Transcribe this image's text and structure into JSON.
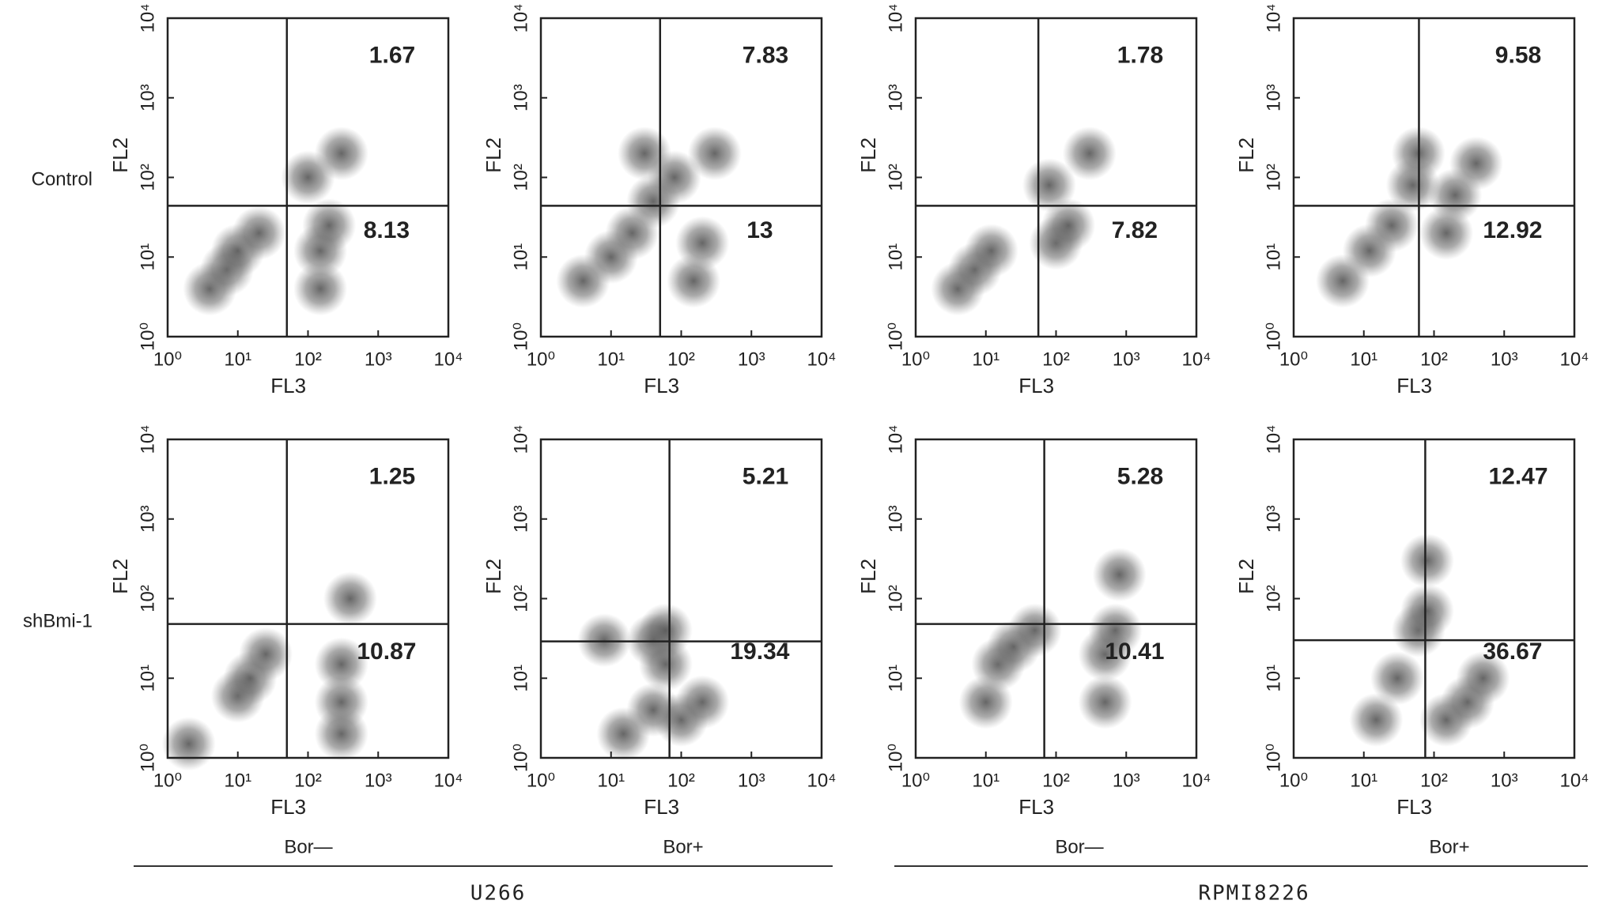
{
  "row_labels": [
    "Control",
    "shBmi-1"
  ],
  "column_labels": [
    "Bor—",
    "Bor+",
    "Bor—",
    "Bor+"
  ],
  "groups": [
    "U266",
    "RPMI8226"
  ],
  "chart_data": [
    {
      "type": "scatter",
      "xlabel": "FL3",
      "ylabel": "FL2",
      "log": true,
      "xlim": [
        1,
        10000
      ],
      "ylim": [
        1,
        10000
      ],
      "xticks": [
        {
          "value": 1,
          "label": "10⁰"
        },
        {
          "value": 10,
          "label": "10¹"
        },
        {
          "value": 100,
          "label": "10²"
        },
        {
          "value": 1000,
          "label": "10³"
        },
        {
          "value": 10000,
          "label": "10⁴"
        }
      ],
      "yticks": [
        {
          "value": 1,
          "label": "10⁰"
        },
        {
          "value": 10,
          "label": "10¹"
        },
        {
          "value": 100,
          "label": "10²"
        },
        {
          "value": 1000,
          "label": "10³"
        },
        {
          "value": 10000,
          "label": "10⁴"
        }
      ],
      "gate": {
        "x": 50,
        "y": 44
      },
      "quadrants": {
        "upper_right": 1.67,
        "lower_right": 8.13
      },
      "x": [
        4,
        7,
        10,
        20,
        150,
        200,
        150,
        100,
        300
      ],
      "y": [
        4,
        7,
        12,
        20,
        12,
        25,
        4,
        100,
        200
      ]
    },
    {
      "type": "scatter",
      "xlabel": "FL3",
      "ylabel": "FL2",
      "log": true,
      "xlim": [
        1,
        10000
      ],
      "ylim": [
        1,
        10000
      ],
      "xticks": [
        {
          "value": 1,
          "label": "10⁰"
        },
        {
          "value": 10,
          "label": "10¹"
        },
        {
          "value": 100,
          "label": "10²"
        },
        {
          "value": 1000,
          "label": "10³"
        },
        {
          "value": 10000,
          "label": "10⁴"
        }
      ],
      "yticks": [
        {
          "value": 1,
          "label": "10⁰"
        },
        {
          "value": 10,
          "label": "10¹"
        },
        {
          "value": 100,
          "label": "10²"
        },
        {
          "value": 1000,
          "label": "10³"
        },
        {
          "value": 10000,
          "label": "10⁴"
        }
      ],
      "gate": {
        "x": 50,
        "y": 44
      },
      "quadrants": {
        "upper_right": 7.83,
        "lower_right": 13
      },
      "x": [
        4,
        10,
        20,
        40,
        80,
        200,
        150,
        300,
        30
      ],
      "y": [
        5,
        10,
        20,
        50,
        100,
        15,
        5,
        200,
        200
      ]
    },
    {
      "type": "scatter",
      "xlabel": "FL3",
      "ylabel": "FL2",
      "log": true,
      "xlim": [
        1,
        10000
      ],
      "ylim": [
        1,
        10000
      ],
      "xticks": [
        {
          "value": 1,
          "label": "10⁰"
        },
        {
          "value": 10,
          "label": "10¹"
        },
        {
          "value": 100,
          "label": "10²"
        },
        {
          "value": 1000,
          "label": "10³"
        },
        {
          "value": 10000,
          "label": "10⁴"
        }
      ],
      "yticks": [
        {
          "value": 1,
          "label": "10⁰"
        },
        {
          "value": 10,
          "label": "10¹"
        },
        {
          "value": 100,
          "label": "10²"
        },
        {
          "value": 1000,
          "label": "10³"
        },
        {
          "value": 10000,
          "label": "10⁴"
        }
      ],
      "gate": {
        "x": 56,
        "y": 44
      },
      "quadrants": {
        "upper_right": 1.78,
        "lower_right": 7.82
      },
      "x": [
        4,
        7,
        12,
        100,
        150,
        80,
        300
      ],
      "y": [
        4,
        7,
        12,
        15,
        25,
        80,
        200
      ]
    },
    {
      "type": "scatter",
      "xlabel": "FL3",
      "ylabel": "FL2",
      "log": true,
      "xlim": [
        1,
        10000
      ],
      "ylim": [
        1,
        10000
      ],
      "xticks": [
        {
          "value": 1,
          "label": "10⁰"
        },
        {
          "value": 10,
          "label": "10¹"
        },
        {
          "value": 100,
          "label": "10²"
        },
        {
          "value": 1000,
          "label": "10³"
        },
        {
          "value": 10000,
          "label": "10⁴"
        }
      ],
      "yticks": [
        {
          "value": 1,
          "label": "10⁰"
        },
        {
          "value": 10,
          "label": "10¹"
        },
        {
          "value": 100,
          "label": "10²"
        },
        {
          "value": 1000,
          "label": "10³"
        },
        {
          "value": 10000,
          "label": "10⁴"
        }
      ],
      "gate": {
        "x": 61,
        "y": 44
      },
      "quadrants": {
        "upper_right": 9.58,
        "lower_right": 12.92
      },
      "x": [
        5,
        12,
        25,
        50,
        60,
        150,
        200,
        400
      ],
      "y": [
        5,
        12,
        25,
        80,
        200,
        20,
        60,
        150
      ]
    },
    {
      "type": "scatter",
      "xlabel": "FL3",
      "ylabel": "FL2",
      "log": true,
      "xlim": [
        1,
        10000
      ],
      "ylim": [
        1,
        10000
      ],
      "xticks": [
        {
          "value": 1,
          "label": "10⁰"
        },
        {
          "value": 10,
          "label": "10¹"
        },
        {
          "value": 100,
          "label": "10²"
        },
        {
          "value": 1000,
          "label": "10³"
        },
        {
          "value": 10000,
          "label": "10⁴"
        }
      ],
      "yticks": [
        {
          "value": 1,
          "label": "10⁰"
        },
        {
          "value": 10,
          "label": "10¹"
        },
        {
          "value": 100,
          "label": "10²"
        },
        {
          "value": 1000,
          "label": "10³"
        },
        {
          "value": 10000,
          "label": "10⁴"
        }
      ],
      "gate": {
        "x": 50,
        "y": 48
      },
      "quadrants": {
        "upper_right": 1.25,
        "lower_right": 10.87
      },
      "x": [
        10,
        15,
        25,
        300,
        300,
        300,
        400,
        2
      ],
      "y": [
        6,
        10,
        20,
        5,
        2,
        15,
        100,
        1.5
      ]
    },
    {
      "type": "scatter",
      "xlabel": "FL3",
      "ylabel": "FL2",
      "log": true,
      "xlim": [
        1,
        10000
      ],
      "ylim": [
        1,
        10000
      ],
      "xticks": [
        {
          "value": 1,
          "label": "10⁰"
        },
        {
          "value": 10,
          "label": "10¹"
        },
        {
          "value": 100,
          "label": "10²"
        },
        {
          "value": 1000,
          "label": "10³"
        },
        {
          "value": 10000,
          "label": "10⁴"
        }
      ],
      "yticks": [
        {
          "value": 1,
          "label": "10⁰"
        },
        {
          "value": 10,
          "label": "10¹"
        },
        {
          "value": 100,
          "label": "10²"
        },
        {
          "value": 1000,
          "label": "10³"
        },
        {
          "value": 10000,
          "label": "10⁴"
        }
      ],
      "gate": {
        "x": 68,
        "y": 29
      },
      "quadrants": {
        "upper_right": 5.21,
        "lower_right": 19.34
      },
      "x": [
        8,
        40,
        60,
        15,
        40,
        100,
        200,
        60
      ],
      "y": [
        30,
        30,
        40,
        2,
        4,
        3,
        5,
        15
      ]
    },
    {
      "type": "scatter",
      "xlabel": "FL3",
      "ylabel": "FL2",
      "log": true,
      "xlim": [
        1,
        10000
      ],
      "ylim": [
        1,
        10000
      ],
      "xticks": [
        {
          "value": 1,
          "label": "10⁰"
        },
        {
          "value": 10,
          "label": "10¹"
        },
        {
          "value": 100,
          "label": "10²"
        },
        {
          "value": 1000,
          "label": "10³"
        },
        {
          "value": 10000,
          "label": "10⁴"
        }
      ],
      "yticks": [
        {
          "value": 1,
          "label": "10⁰"
        },
        {
          "value": 10,
          "label": "10¹"
        },
        {
          "value": 100,
          "label": "10²"
        },
        {
          "value": 1000,
          "label": "10³"
        },
        {
          "value": 10000,
          "label": "10⁴"
        }
      ],
      "gate": {
        "x": 68,
        "y": 48
      },
      "quadrants": {
        "upper_right": 5.28,
        "lower_right": 10.41
      },
      "x": [
        15,
        25,
        50,
        500,
        700,
        800,
        10,
        500
      ],
      "y": [
        15,
        25,
        40,
        20,
        40,
        200,
        5,
        5
      ]
    },
    {
      "type": "scatter",
      "xlabel": "FL3",
      "ylabel": "FL2",
      "log": true,
      "xlim": [
        1,
        10000
      ],
      "ylim": [
        1,
        10000
      ],
      "xticks": [
        {
          "value": 1,
          "label": "10⁰"
        },
        {
          "value": 10,
          "label": "10¹"
        },
        {
          "value": 100,
          "label": "10²"
        },
        {
          "value": 1000,
          "label": "10³"
        },
        {
          "value": 10000,
          "label": "10⁴"
        }
      ],
      "yticks": [
        {
          "value": 1,
          "label": "10⁰"
        },
        {
          "value": 10,
          "label": "10¹"
        },
        {
          "value": 100,
          "label": "10²"
        },
        {
          "value": 1000,
          "label": "10³"
        },
        {
          "value": 10000,
          "label": "10⁴"
        }
      ],
      "gate": {
        "x": 75,
        "y": 30
      },
      "quadrants": {
        "upper_right": 12.47,
        "lower_right": 36.67
      },
      "x": [
        60,
        80,
        30,
        15,
        150,
        300,
        500,
        80
      ],
      "y": [
        40,
        70,
        10,
        3,
        3,
        5,
        10,
        300
      ]
    }
  ]
}
